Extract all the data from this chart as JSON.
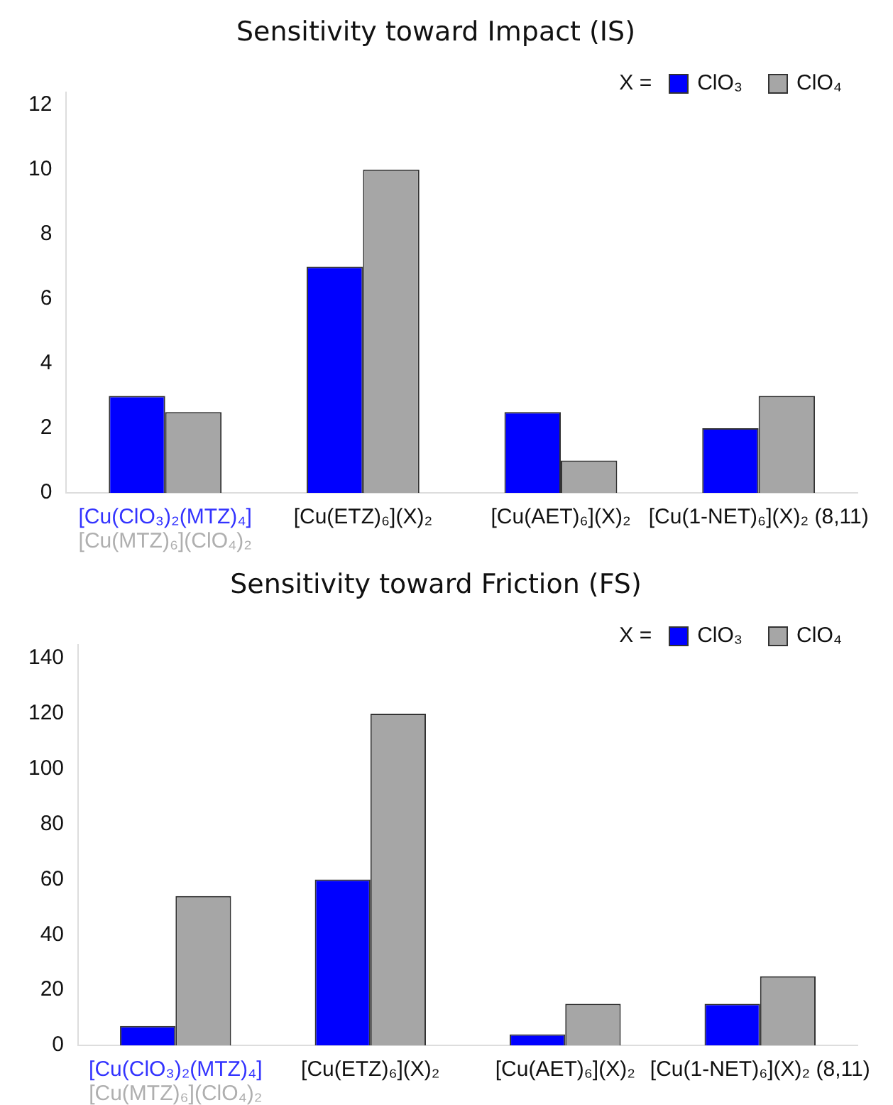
{
  "chart_data": [
    {
      "type": "bar",
      "title": "Sensitivity toward Impact (IS)",
      "legend_title": "X =",
      "legend": "top right",
      "grid": false,
      "categories": [
        "[Cu(ClO₃)₂(MTZ)₄]\n[Cu(MTZ)₆](ClO₄)₂",
        "[Cu(ETZ)₆](X)₂",
        "[Cu(AET)₆](X)₂",
        "[Cu(1-NET)₆](X)₂ (8,11)"
      ],
      "series": [
        {
          "name": "ClO₃",
          "color": "#0000ff",
          "values": [
            3,
            7,
            2.5,
            2
          ]
        },
        {
          "name": "ClO₄",
          "color": "#a6a6a6",
          "values": [
            2.5,
            10,
            1,
            3
          ]
        }
      ],
      "ylim": [
        0,
        12.4
      ],
      "yticks": [
        0,
        2,
        4,
        6,
        8,
        10,
        12
      ]
    },
    {
      "type": "bar",
      "title": "Sensitivity toward Friction (FS)",
      "legend_title": "X =",
      "legend": "top right",
      "grid": false,
      "categories": [
        "[Cu(ClO₃)₂(MTZ)₄]\n[Cu(MTZ)₆](ClO₄)₂",
        "[Cu(ETZ)₆](X)₂",
        "[Cu(AET)₆](X)₂",
        "[Cu(1-NET)₆](X)₂ (8,11)"
      ],
      "series": [
        {
          "name": "ClO₃",
          "color": "#0000ff",
          "values": [
            7,
            60,
            4,
            15
          ]
        },
        {
          "name": "ClO₄",
          "color": "#a6a6a6",
          "values": [
            54,
            120,
            15,
            25
          ]
        }
      ],
      "ylim": [
        0,
        145
      ],
      "yticks": [
        0,
        20,
        40,
        60,
        80,
        100,
        120,
        140
      ]
    }
  ]
}
